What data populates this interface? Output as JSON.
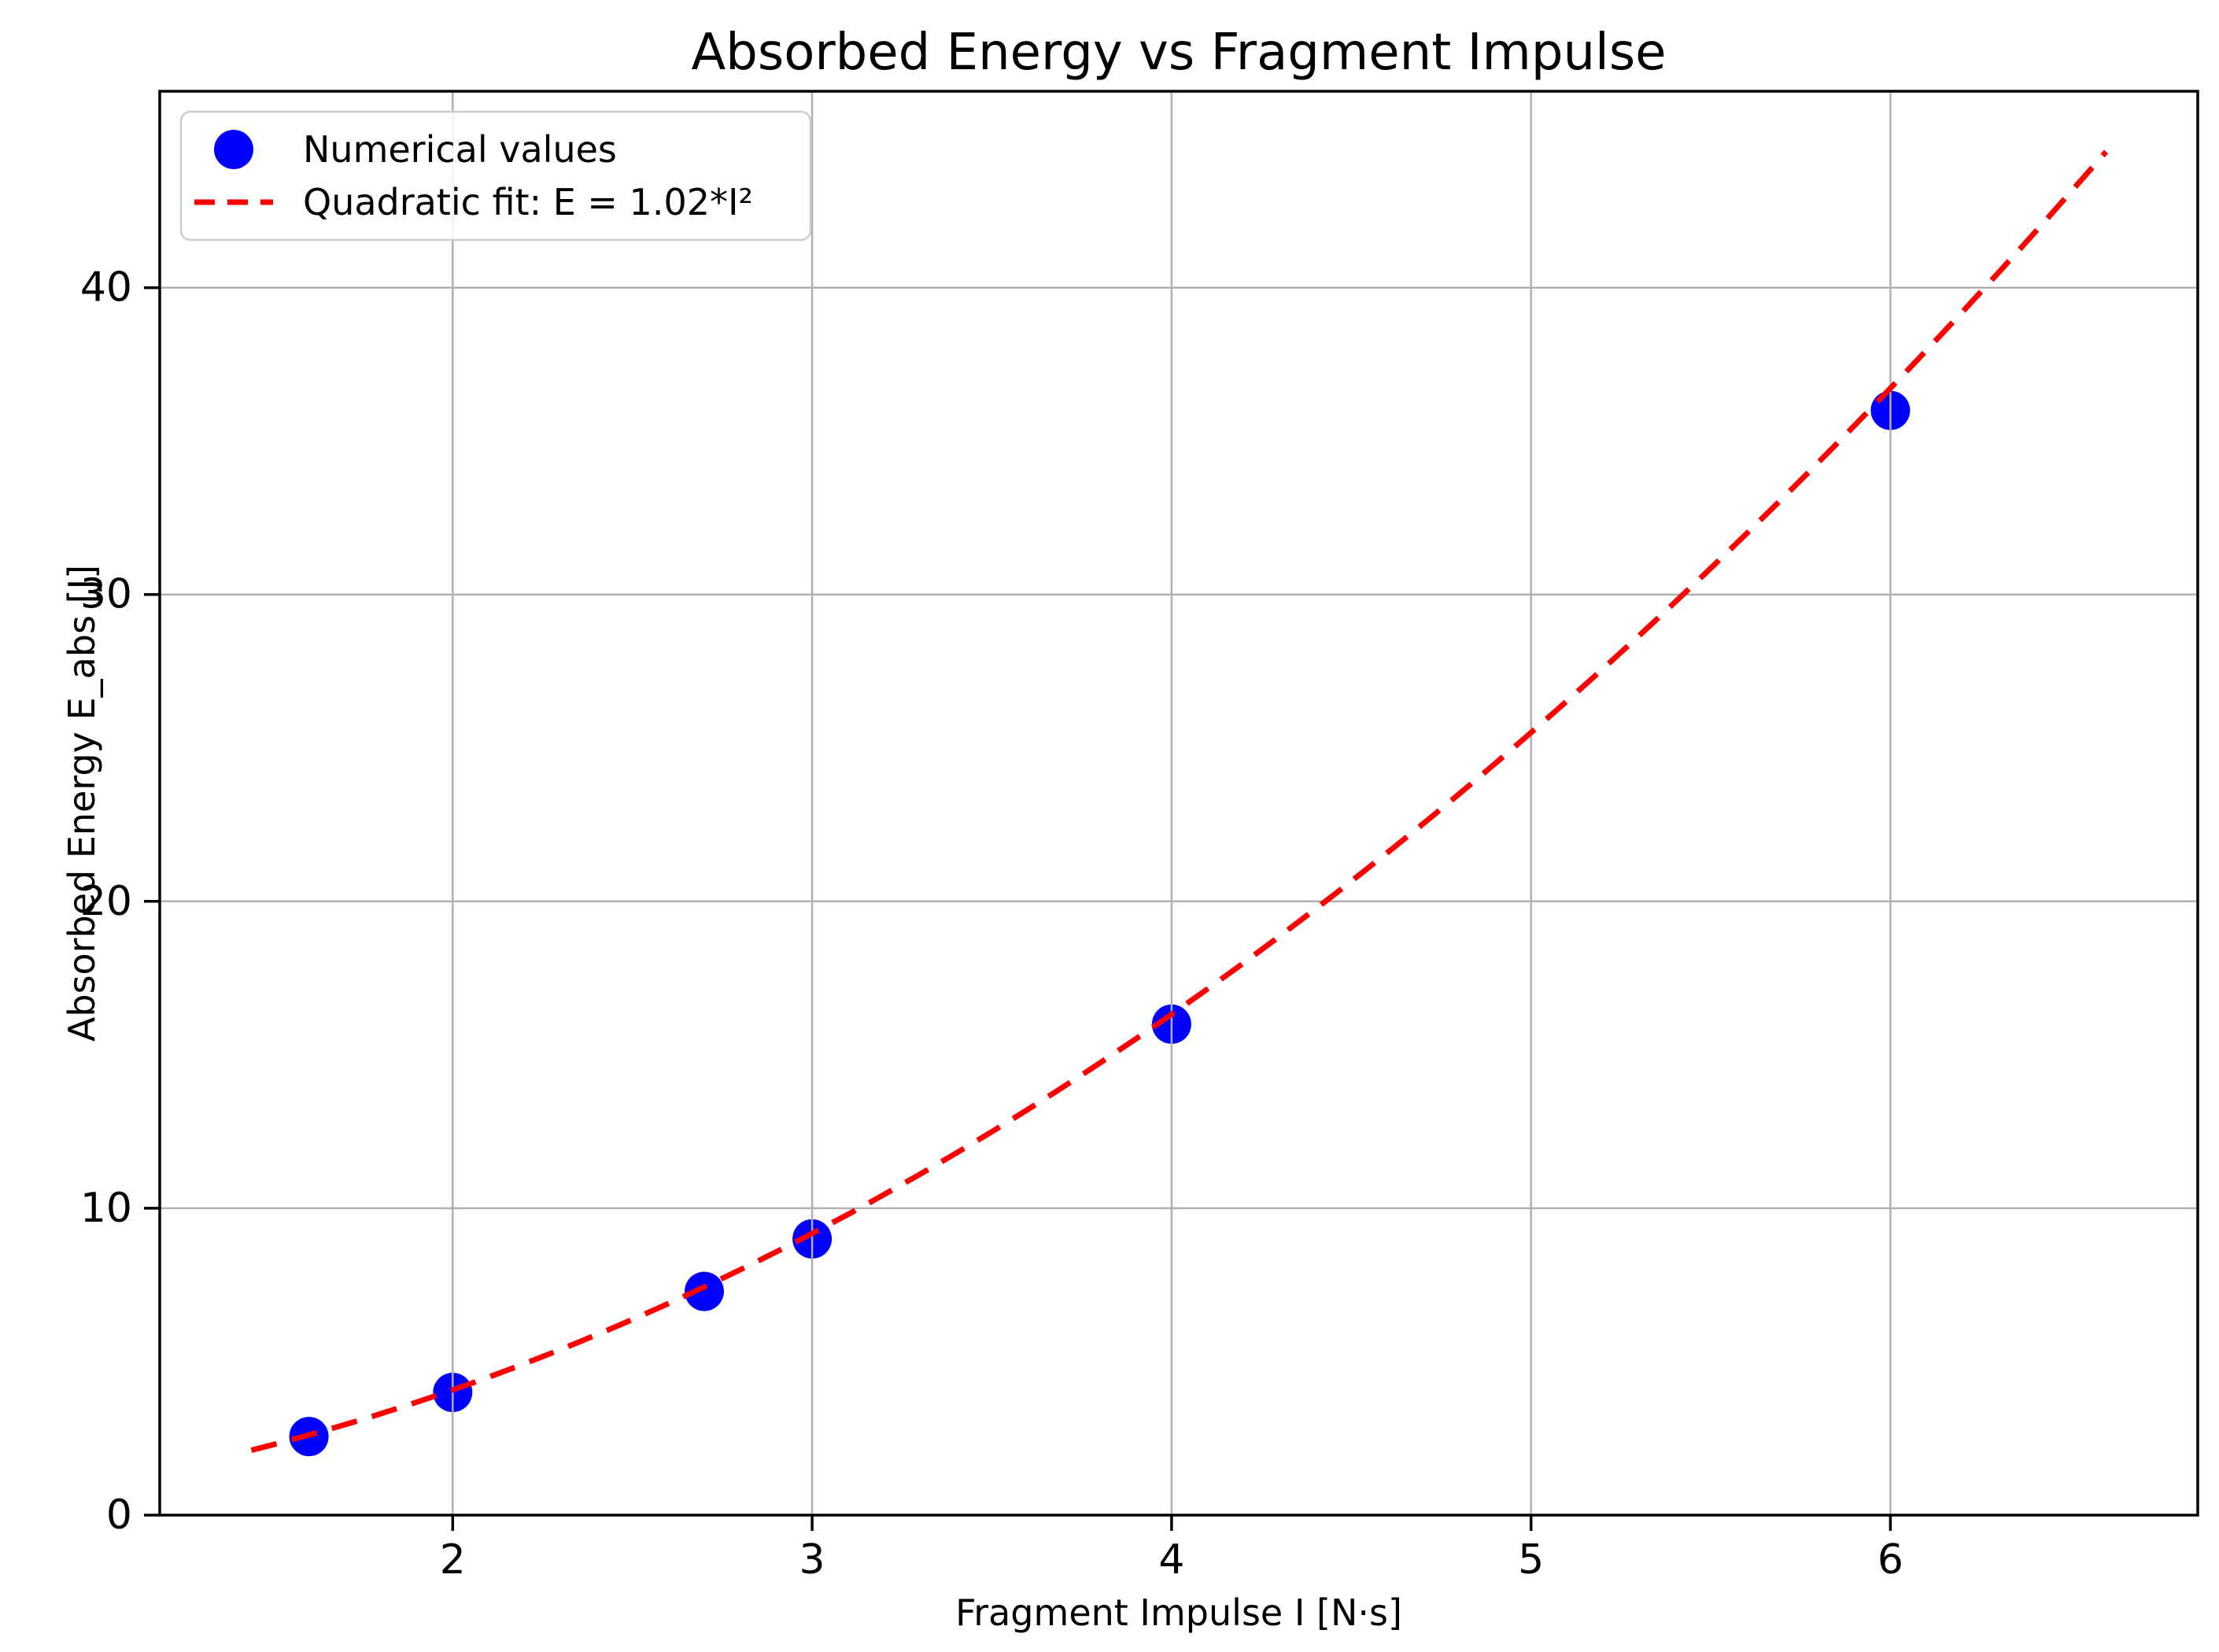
{
  "chart_data": {
    "type": "scatter",
    "title": "Absorbed Energy vs Fragment Impulse",
    "xlabel": "Fragment Impulse I [N·s]",
    "ylabel": "Absorbed Energy E_abs [J]",
    "xlim": [
      1.185,
      6.855
    ],
    "ylim": [
      0,
      46.4
    ],
    "xticks": [
      2,
      3,
      4,
      5,
      6
    ],
    "yticks": [
      0,
      10,
      20,
      30,
      40
    ],
    "grid": true,
    "grid_color": "#b0b0b0",
    "axis_color": "#000000",
    "background_color": "#ffffff",
    "legend_position": "upper left",
    "series": [
      {
        "name": "Numerical values",
        "type": "scatter",
        "marker": "circle",
        "color": "#0000ff",
        "points": [
          [
            1.6,
            2.56
          ],
          [
            2.0,
            4.0
          ],
          [
            2.7,
            7.29
          ],
          [
            3.0,
            9.0
          ],
          [
            4.0,
            16.0
          ],
          [
            6.0,
            36.0
          ]
        ]
      },
      {
        "name": "Quadratic fit: E = 1.02*I²",
        "type": "line",
        "style": "dashed",
        "color": "#ff0000",
        "equation": "E = 1.02*I²",
        "coefficient": 1.02,
        "x_range": [
          1.44,
          6.6
        ]
      }
    ]
  }
}
